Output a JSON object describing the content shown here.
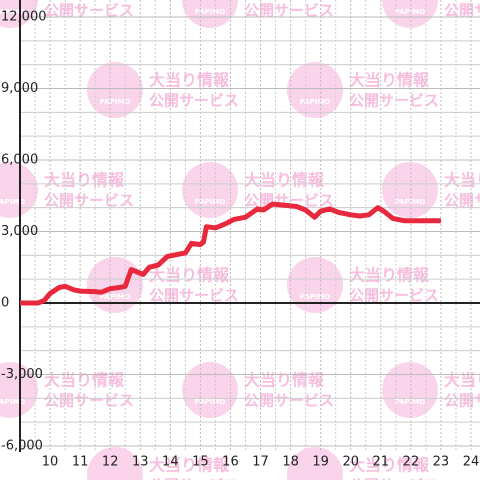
{
  "chart_data": {
    "type": "line",
    "watermark": {
      "title": "大当り情報",
      "subtitle": "公開サービス",
      "logo": "PAPIMO"
    },
    "x": [
      9.0,
      9.6,
      9.8,
      10.0,
      10.3,
      10.5,
      10.8,
      11.0,
      11.5,
      11.7,
      12.0,
      12.3,
      12.5,
      12.7,
      12.9,
      13.1,
      13.3,
      13.6,
      13.9,
      14.3,
      14.5,
      14.7,
      15.0,
      15.1,
      15.2,
      15.5,
      15.8,
      16.1,
      16.5,
      16.9,
      17.1,
      17.4,
      17.8,
      18.2,
      18.5,
      18.8,
      19.0,
      19.3,
      19.6,
      20.0,
      20.3,
      20.6,
      20.9,
      21.1,
      21.4,
      21.8,
      22.2,
      23.0
    ],
    "series": [
      {
        "color": "#e8283c",
        "values": [
          0,
          0,
          100,
          400,
          650,
          700,
          550,
          500,
          480,
          450,
          600,
          650,
          700,
          1400,
          1300,
          1200,
          1500,
          1600,
          1950,
          2050,
          2100,
          2500,
          2450,
          2550,
          3200,
          3150,
          3300,
          3500,
          3600,
          3950,
          3900,
          4150,
          4100,
          4050,
          3900,
          3600,
          3850,
          3950,
          3800,
          3700,
          3650,
          3700,
          4000,
          3850,
          3550,
          3450,
          3450,
          3450
        ]
      }
    ],
    "xlim": [
      9,
      24.3
    ],
    "xticks": [
      10,
      11,
      12,
      13,
      14,
      15,
      16,
      17,
      18,
      19,
      20,
      21,
      22,
      23,
      24
    ],
    "x_minor_ticks": [
      9.5,
      10.5,
      11.5,
      12.5,
      13.5,
      14.5,
      15.5,
      16.5,
      17.5,
      18.5,
      19.5,
      20.5,
      21.5,
      22.5,
      23.5
    ],
    "ylim": [
      -6000,
      12000
    ],
    "yticks": [
      {
        "value": -6000,
        "label": "-6,000"
      },
      {
        "value": -3000,
        "label": "-3,000"
      },
      0,
      {
        "value": 3000,
        "label": "3,000"
      },
      {
        "value": 6000,
        "label": "6,000"
      },
      {
        "value": 9000,
        "label": "9,000"
      },
      {
        "value": 12000,
        "label": "12,000"
      }
    ],
    "y_minor_ticks": [
      -5000,
      -4000,
      -2000,
      -1000,
      1000,
      2000,
      4000,
      5000,
      7000,
      8000,
      10000,
      11000
    ],
    "grid": true
  }
}
